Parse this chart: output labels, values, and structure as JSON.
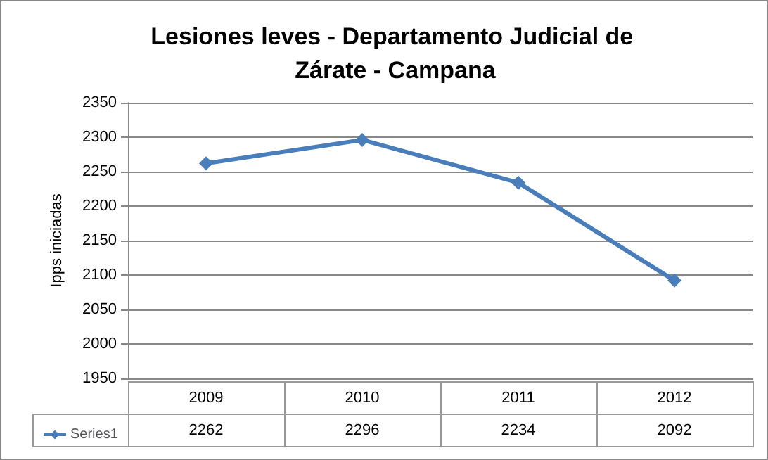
{
  "chart_data": {
    "type": "line",
    "title": "Lesiones leves - Departamento Judicial de Zárate - Campana",
    "ylabel": "Ipps iniciadas",
    "categories": [
      "2009",
      "2010",
      "2011",
      "2012"
    ],
    "series": [
      {
        "name": "Series1",
        "color": "#4a7ebb",
        "values": [
          2262,
          2296,
          2234,
          2092
        ]
      }
    ],
    "ylim": [
      1950,
      2350
    ],
    "yticks": [
      1950,
      2000,
      2050,
      2100,
      2150,
      2200,
      2250,
      2300,
      2350
    ],
    "grid": "y",
    "marker": "diamond",
    "line_style": "solid",
    "data_labels": true,
    "legend": "bottom left"
  }
}
